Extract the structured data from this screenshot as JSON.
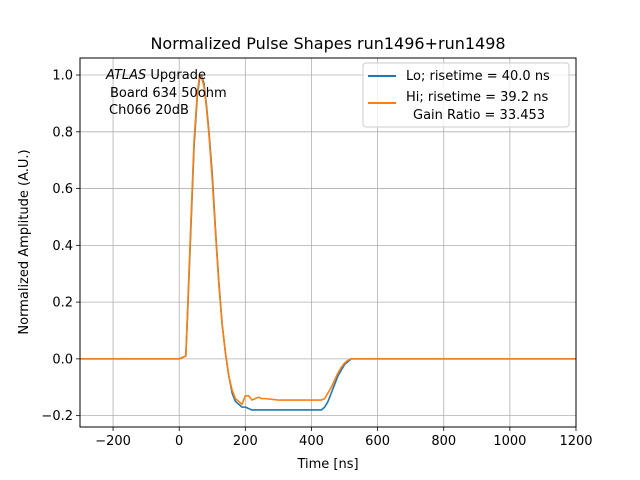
{
  "chart_data": {
    "type": "line",
    "title": "Normalized Pulse Shapes run1496+run1498",
    "xlabel": "Time [ns]",
    "ylabel": "Normalized Amplitude (A.U.)",
    "xlim": [
      -300,
      1200
    ],
    "ylim": [
      -0.24,
      1.06
    ],
    "xticks": [
      -200,
      0,
      200,
      400,
      600,
      800,
      1000,
      1200
    ],
    "xtick_labels": [
      "−200",
      "0",
      "200",
      "400",
      "600",
      "800",
      "1000",
      "1200"
    ],
    "yticks": [
      -0.2,
      0.0,
      0.2,
      0.4,
      0.6,
      0.8,
      1.0
    ],
    "ytick_labels": [
      "−0.2",
      "0.0",
      "0.2",
      "0.4",
      "0.6",
      "0.8",
      "1.0"
    ],
    "grid": true,
    "legend_position": "top-right",
    "annotation": {
      "atlas": "ATLAS",
      "line1_rest": " Upgrade",
      "line2": "Board 634 50ohm",
      "line3": "Ch066 20dB"
    },
    "series": [
      {
        "name": "Lo; risetime = 40.0 ns",
        "color": "#1f77b4",
        "x": [
          -300,
          -200,
          -100,
          0,
          20,
          25,
          35,
          45,
          55,
          62,
          68,
          75,
          82,
          90,
          100,
          110,
          120,
          130,
          140,
          150,
          160,
          170,
          180,
          190,
          200,
          210,
          220,
          240,
          260,
          300,
          350,
          400,
          430,
          440,
          450,
          460,
          470,
          480,
          490,
          500,
          510,
          520,
          540,
          560,
          600,
          700,
          800,
          900,
          1000,
          1100,
          1200
        ],
        "y": [
          0.0,
          0.0,
          0.0,
          0.0,
          0.01,
          0.15,
          0.45,
          0.75,
          0.93,
          0.99,
          0.995,
          0.97,
          0.9,
          0.8,
          0.65,
          0.45,
          0.27,
          0.12,
          0.02,
          -0.06,
          -0.12,
          -0.15,
          -0.16,
          -0.17,
          -0.17,
          -0.175,
          -0.18,
          -0.18,
          -0.18,
          -0.18,
          -0.18,
          -0.18,
          -0.18,
          -0.17,
          -0.15,
          -0.12,
          -0.09,
          -0.06,
          -0.04,
          -0.02,
          -0.01,
          0.0,
          0.0,
          0.0,
          0.0,
          0.0,
          0.0,
          0.0,
          0.0,
          0.0,
          0.0
        ]
      },
      {
        "name": "Hi; risetime = 39.2 ns",
        "name_line2": "Gain Ratio = 33.453",
        "color": "#ff7f0e",
        "x": [
          -300,
          -200,
          -100,
          0,
          20,
          25,
          35,
          45,
          55,
          62,
          68,
          75,
          82,
          90,
          100,
          110,
          120,
          130,
          140,
          150,
          160,
          170,
          180,
          190,
          200,
          210,
          220,
          230,
          240,
          250,
          260,
          300,
          350,
          400,
          430,
          440,
          450,
          460,
          470,
          480,
          490,
          500,
          510,
          520,
          540,
          560,
          600,
          700,
          800,
          900,
          1000,
          1100,
          1200
        ],
        "y": [
          0.0,
          0.0,
          0.0,
          0.0,
          0.01,
          0.16,
          0.47,
          0.77,
          0.94,
          1.0,
          0.99,
          0.96,
          0.89,
          0.79,
          0.63,
          0.44,
          0.26,
          0.12,
          0.02,
          -0.06,
          -0.11,
          -0.14,
          -0.15,
          -0.16,
          -0.13,
          -0.13,
          -0.145,
          -0.14,
          -0.135,
          -0.14,
          -0.14,
          -0.145,
          -0.145,
          -0.145,
          -0.145,
          -0.14,
          -0.12,
          -0.1,
          -0.075,
          -0.05,
          -0.03,
          -0.015,
          -0.005,
          0.0,
          0.0,
          0.0,
          0.0,
          0.0,
          0.0,
          0.0,
          0.0,
          0.0,
          0.0
        ]
      }
    ]
  }
}
